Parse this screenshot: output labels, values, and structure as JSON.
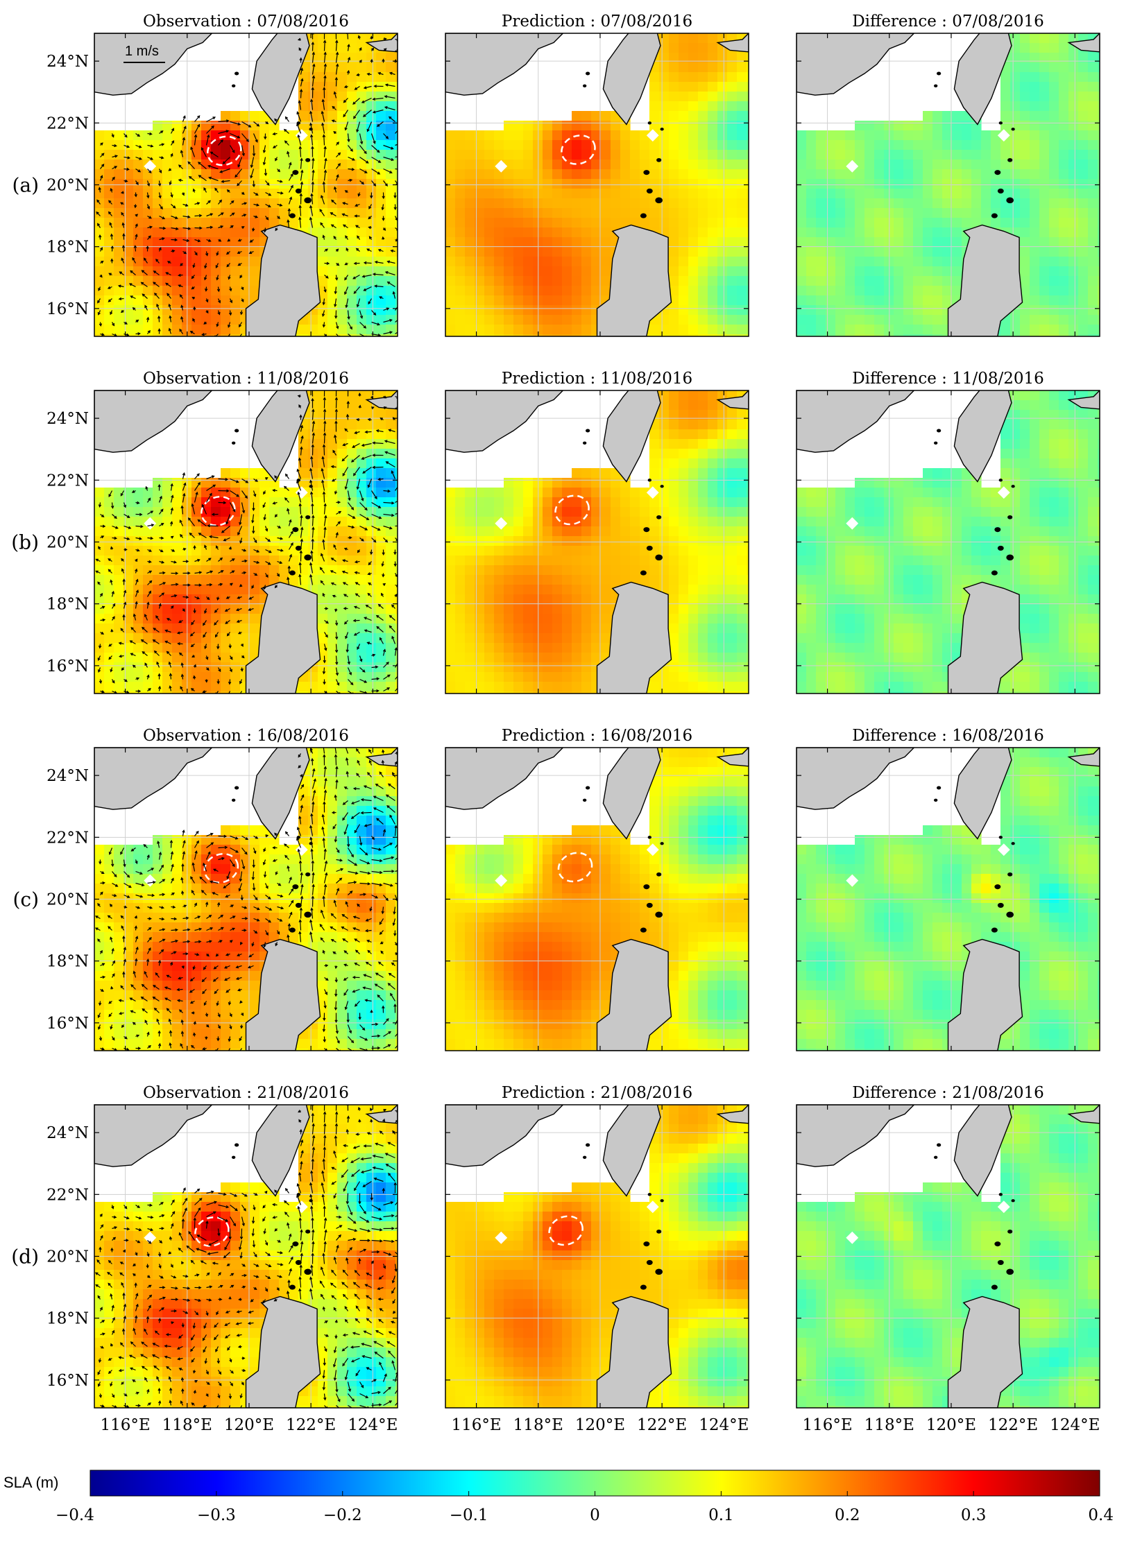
{
  "figure": {
    "rows": [
      {
        "label": "(a)",
        "titles": [
          "Observation : 07/08/2016",
          "Prediction : 07/08/2016",
          "Difference : 07/08/2016"
        ],
        "blobs": [
          {
            "lon": 119.2,
            "lat": 21.1,
            "r": 0.9,
            "sla": 0.32
          },
          {
            "lon": 118.6,
            "lat": 17.3,
            "r": 2.0,
            "sla": 0.25
          },
          {
            "lon": 115.8,
            "lat": 18.8,
            "r": 1.5,
            "sla": 0.18
          },
          {
            "lon": 124.6,
            "lat": 21.8,
            "r": 1.1,
            "sla": -0.12
          },
          {
            "lon": 124.4,
            "lat": 16.4,
            "r": 1.2,
            "sla": -0.08
          },
          {
            "lon": 122.8,
            "lat": 24.2,
            "r": 1.3,
            "sla": 0.18
          },
          {
            "lon": 123.2,
            "lat": 19.4,
            "r": 1.2,
            "sla": 0.14
          }
        ]
      },
      {
        "label": "(b)",
        "titles": [
          "Observation : 11/08/2016",
          "Prediction : 11/08/2016",
          "Difference : 11/08/2016"
        ],
        "blobs": [
          {
            "lon": 119.0,
            "lat": 21.0,
            "r": 0.8,
            "sla": 0.28
          },
          {
            "lon": 118.4,
            "lat": 17.8,
            "r": 2.0,
            "sla": 0.24
          },
          {
            "lon": 124.4,
            "lat": 21.9,
            "r": 1.2,
            "sla": -0.13
          },
          {
            "lon": 124.0,
            "lat": 16.8,
            "r": 1.2,
            "sla": -0.06
          },
          {
            "lon": 123.0,
            "lat": 24.3,
            "r": 1.2,
            "sla": 0.2
          },
          {
            "lon": 116.2,
            "lat": 21.0,
            "r": 1.1,
            "sla": 0.0
          }
        ]
      },
      {
        "label": "(c)",
        "titles": [
          "Observation : 16/08/2016",
          "Prediction : 16/08/2016",
          "Difference : 16/08/2016"
        ],
        "blobs": [
          {
            "lon": 119.1,
            "lat": 21.0,
            "r": 0.8,
            "sla": 0.22
          },
          {
            "lon": 118.6,
            "lat": 18.0,
            "r": 2.1,
            "sla": 0.26
          },
          {
            "lon": 124.0,
            "lat": 22.2,
            "r": 1.3,
            "sla": -0.14
          },
          {
            "lon": 124.0,
            "lat": 16.6,
            "r": 1.2,
            "sla": -0.07
          },
          {
            "lon": 124.0,
            "lat": 19.8,
            "r": 1.0,
            "sla": 0.18
          },
          {
            "lon": 116.4,
            "lat": 21.0,
            "r": 1.0,
            "sla": -0.02
          }
        ]
      },
      {
        "label": "(d)",
        "titles": [
          "Observation : 21/08/2016",
          "Prediction : 21/08/2016",
          "Difference : 21/08/2016"
        ],
        "blobs": [
          {
            "lon": 118.8,
            "lat": 20.8,
            "r": 0.8,
            "sla": 0.3
          },
          {
            "lon": 118.0,
            "lat": 18.0,
            "r": 2.0,
            "sla": 0.23
          },
          {
            "lon": 124.2,
            "lat": 22.1,
            "r": 1.2,
            "sla": -0.15
          },
          {
            "lon": 123.9,
            "lat": 16.3,
            "r": 1.2,
            "sla": -0.08
          },
          {
            "lon": 124.4,
            "lat": 19.6,
            "r": 1.1,
            "sla": 0.24
          },
          {
            "lon": 122.9,
            "lat": 24.2,
            "r": 1.1,
            "sla": 0.18
          }
        ]
      }
    ],
    "lon_range": [
      115,
      124.8
    ],
    "lat_range": [
      15.1,
      24.9
    ],
    "lon_ticks": [
      116,
      118,
      120,
      122,
      124
    ],
    "lat_ticks": [
      16,
      18,
      20,
      22,
      24
    ],
    "lon_tick_labels": [
      "116°E",
      "118°E",
      "120°E",
      "122°E",
      "124°E"
    ],
    "lat_tick_labels": [
      "16°N",
      "18°N",
      "20°N",
      "22°N",
      "24°N"
    ],
    "scale_label": "1 m/s",
    "colorbar": {
      "label": "SLA (m)",
      "range": [
        -0.4,
        0.4
      ],
      "ticks": [
        "−0.4",
        "−0.3",
        "−0.2",
        "−0.1",
        "0",
        "0.1",
        "0.2",
        "0.3",
        "0.4"
      ],
      "stops": [
        "#00008f",
        "#0000ff",
        "#0080ff",
        "#00ffff",
        "#80ff80",
        "#ffff00",
        "#ff8000",
        "#ff0000",
        "#800000"
      ]
    },
    "colors": {
      "land": "#c8c8c8",
      "coast": "#000000",
      "eddy_contour": "#ffffff",
      "grid": "#d0d0d0"
    }
  }
}
